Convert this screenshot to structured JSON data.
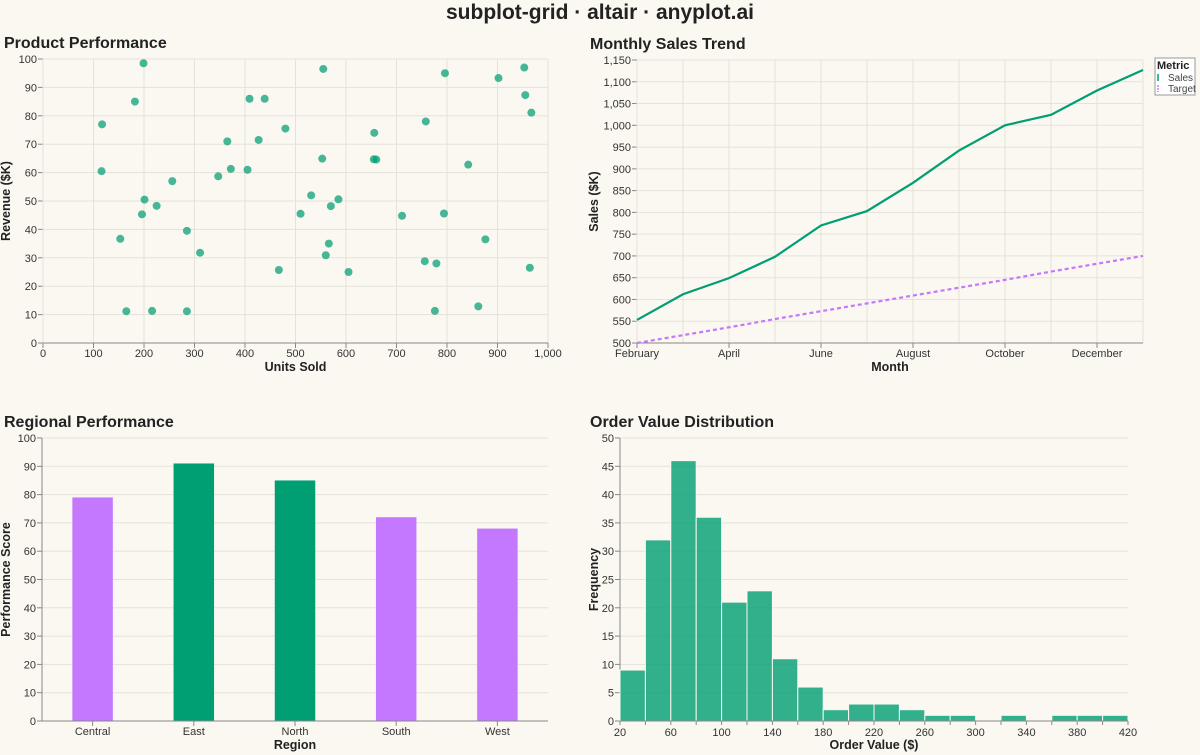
{
  "title": "subplot-grid · altair · anyplot.ai",
  "colors": {
    "green": "#009E73",
    "purple": "#C478FF",
    "bg": "#FAF8F1",
    "grid": "#E5E2D9"
  },
  "chart_data": [
    {
      "id": "scatter",
      "type": "scatter",
      "title": "Product Performance",
      "xlabel": "Units Sold",
      "ylabel": "Revenue ($K)",
      "xlim": [
        0,
        1000
      ],
      "ylim": [
        0,
        100
      ],
      "xticks": [
        0,
        100,
        200,
        300,
        400,
        500,
        600,
        700,
        800,
        900,
        1000
      ],
      "xtick_labels": [
        "0",
        "100",
        "200",
        "300",
        "400",
        "500",
        "600",
        "700",
        "800",
        "900",
        "1,000"
      ],
      "yticks": [
        0,
        10,
        20,
        30,
        40,
        50,
        60,
        70,
        80,
        90,
        100
      ],
      "ytick_labels": [
        "0",
        "10",
        "20",
        "30",
        "40",
        "50",
        "60",
        "70",
        "80",
        "90",
        "100"
      ],
      "points": [
        [
          117,
          77
        ],
        [
          116,
          60.5
        ],
        [
          153,
          36.7
        ],
        [
          165,
          11.2
        ],
        [
          182,
          85
        ],
        [
          196,
          45.3
        ],
        [
          199,
          98.5
        ],
        [
          201,
          50.5
        ],
        [
          216,
          11.3
        ],
        [
          225,
          48.3
        ],
        [
          256,
          57
        ],
        [
          285,
          39.5
        ],
        [
          285,
          11.2
        ],
        [
          311,
          31.8
        ],
        [
          347,
          58.7
        ],
        [
          365,
          71
        ],
        [
          372,
          61.3
        ],
        [
          405,
          61
        ],
        [
          409,
          86
        ],
        [
          427,
          71.5
        ],
        [
          439,
          86
        ],
        [
          467,
          25.7
        ],
        [
          480,
          75.5
        ],
        [
          510,
          45.5
        ],
        [
          531,
          52
        ],
        [
          553,
          64.9
        ],
        [
          555,
          96.5
        ],
        [
          560,
          30.9
        ],
        [
          566,
          35
        ],
        [
          570,
          48.2
        ],
        [
          585,
          50.6
        ],
        [
          605,
          25
        ],
        [
          655,
          64.7
        ],
        [
          656,
          74
        ],
        [
          660,
          64.6
        ],
        [
          711,
          44.8
        ],
        [
          756,
          28.8
        ],
        [
          758,
          78
        ],
        [
          779,
          28
        ],
        [
          776,
          11.3
        ],
        [
          794,
          45.6
        ],
        [
          796,
          95
        ],
        [
          842,
          62.8
        ],
        [
          862,
          12.9
        ],
        [
          876,
          36.5
        ],
        [
          902,
          93.3
        ],
        [
          953,
          97
        ],
        [
          955,
          87.3
        ],
        [
          964,
          26.5
        ],
        [
          967,
          81.1
        ]
      ]
    },
    {
      "id": "line",
      "type": "line",
      "title": "Monthly Sales Trend",
      "xlabel": "Month",
      "ylabel": "Sales ($K)",
      "x": [
        "2024-02",
        "2024-03",
        "2024-04",
        "2024-05",
        "2024-06",
        "2024-07",
        "2024-08",
        "2024-09",
        "2024-10",
        "2024-11",
        "2024-12",
        "2025-01"
      ],
      "xtick_labels": [
        "February",
        "April",
        "June",
        "August",
        "October",
        "December"
      ],
      "ylim": [
        500,
        1150
      ],
      "yticks": [
        500,
        550,
        600,
        650,
        700,
        750,
        800,
        850,
        900,
        950,
        1000,
        1050,
        1100,
        1150
      ],
      "ytick_labels": [
        "500",
        "550",
        "600",
        "650",
        "700",
        "750",
        "800",
        "850",
        "900",
        "950",
        "1,000",
        "1,050",
        "1,100",
        "1,150"
      ],
      "legend_title": "Metric",
      "legend_position": "right",
      "series": [
        {
          "name": "Sales",
          "color": "#009E73",
          "dash": "solid",
          "values": [
            553,
            612,
            649,
            698,
            770,
            803,
            868,
            942,
            1000,
            1024,
            1080,
            1127
          ]
        },
        {
          "name": "Target",
          "color": "#C478FF",
          "dash": "dashed",
          "values": [
            500,
            518,
            536,
            555,
            573,
            591,
            609,
            627,
            645,
            664,
            682,
            700
          ]
        }
      ]
    },
    {
      "id": "bar",
      "type": "bar",
      "title": "Regional Performance",
      "xlabel": "Region",
      "ylabel": "Performance Score",
      "ylim": [
        0,
        100
      ],
      "yticks": [
        0,
        10,
        20,
        30,
        40,
        50,
        60,
        70,
        80,
        90,
        100
      ],
      "ytick_labels": [
        "0",
        "10",
        "20",
        "30",
        "40",
        "50",
        "60",
        "70",
        "80",
        "90",
        "100"
      ],
      "categories": [
        "Central",
        "East",
        "North",
        "South",
        "West"
      ],
      "values": [
        79,
        91,
        85,
        72,
        68
      ],
      "bar_colors": [
        "#C478FF",
        "#009E73",
        "#009E73",
        "#C478FF",
        "#C478FF"
      ]
    },
    {
      "id": "hist",
      "type": "bar",
      "title": "Order Value Distribution",
      "xlabel": "Order Value ($)",
      "ylabel": "Frequency",
      "xlim": [
        20,
        420
      ],
      "ylim": [
        0,
        50
      ],
      "xticks": [
        20,
        60,
        100,
        140,
        180,
        220,
        260,
        300,
        340,
        380,
        420
      ],
      "xtick_labels": [
        "20",
        "60",
        "100",
        "140",
        "180",
        "220",
        "260",
        "300",
        "340",
        "380",
        "420"
      ],
      "yticks": [
        0,
        5,
        10,
        15,
        20,
        25,
        30,
        35,
        40,
        45,
        50
      ],
      "ytick_labels": [
        "0",
        "5",
        "10",
        "15",
        "20",
        "25",
        "30",
        "35",
        "40",
        "45",
        "50"
      ],
      "bin_edges": [
        20,
        40,
        60,
        80,
        100,
        120,
        140,
        160,
        180,
        200,
        220,
        240,
        260,
        280,
        300,
        320,
        340,
        360,
        380,
        400,
        420
      ],
      "counts": [
        9,
        32,
        46,
        36,
        21,
        23,
        11,
        6,
        2,
        3,
        3,
        2,
        1,
        1,
        0,
        1,
        0,
        1,
        1,
        1
      ]
    }
  ]
}
